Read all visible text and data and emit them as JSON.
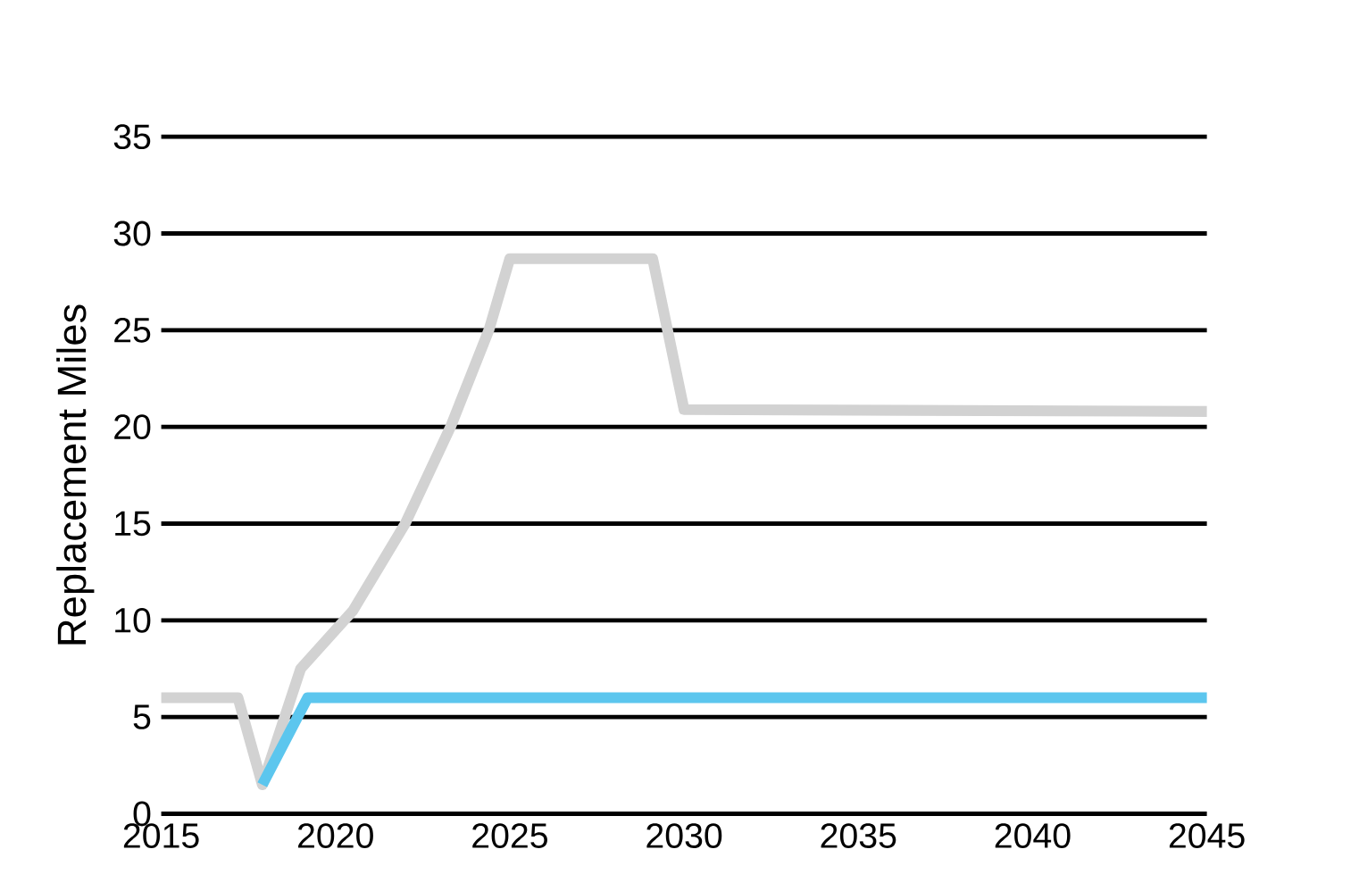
{
  "chart_data": {
    "type": "line",
    "ylabel": "Replacement Miles",
    "xlim": [
      2015,
      2045
    ],
    "xticks": [
      2015,
      2020,
      2025,
      2030,
      2035,
      2040,
      2045
    ],
    "ylim": [
      0,
      35
    ],
    "yticks": [
      0,
      5,
      10,
      15,
      20,
      25,
      30,
      35
    ],
    "grid": "y",
    "line_style": "solid",
    "series": [
      {
        "color": "#d2d2d2",
        "x": [
          2015,
          2017.2,
          2017.9,
          2019,
          2020.5,
          2022,
          2023.3,
          2024.4,
          2025,
          2029.1,
          2030,
          2045
        ],
        "values": [
          6,
          6,
          1.5,
          7.5,
          10.5,
          15,
          20,
          25,
          28.7,
          28.7,
          20.9,
          20.8
        ]
      },
      {
        "color": "#5cc6ee",
        "x": [
          2017.9,
          2019.2,
          2045
        ],
        "values": [
          1.5,
          6,
          6
        ]
      }
    ]
  }
}
